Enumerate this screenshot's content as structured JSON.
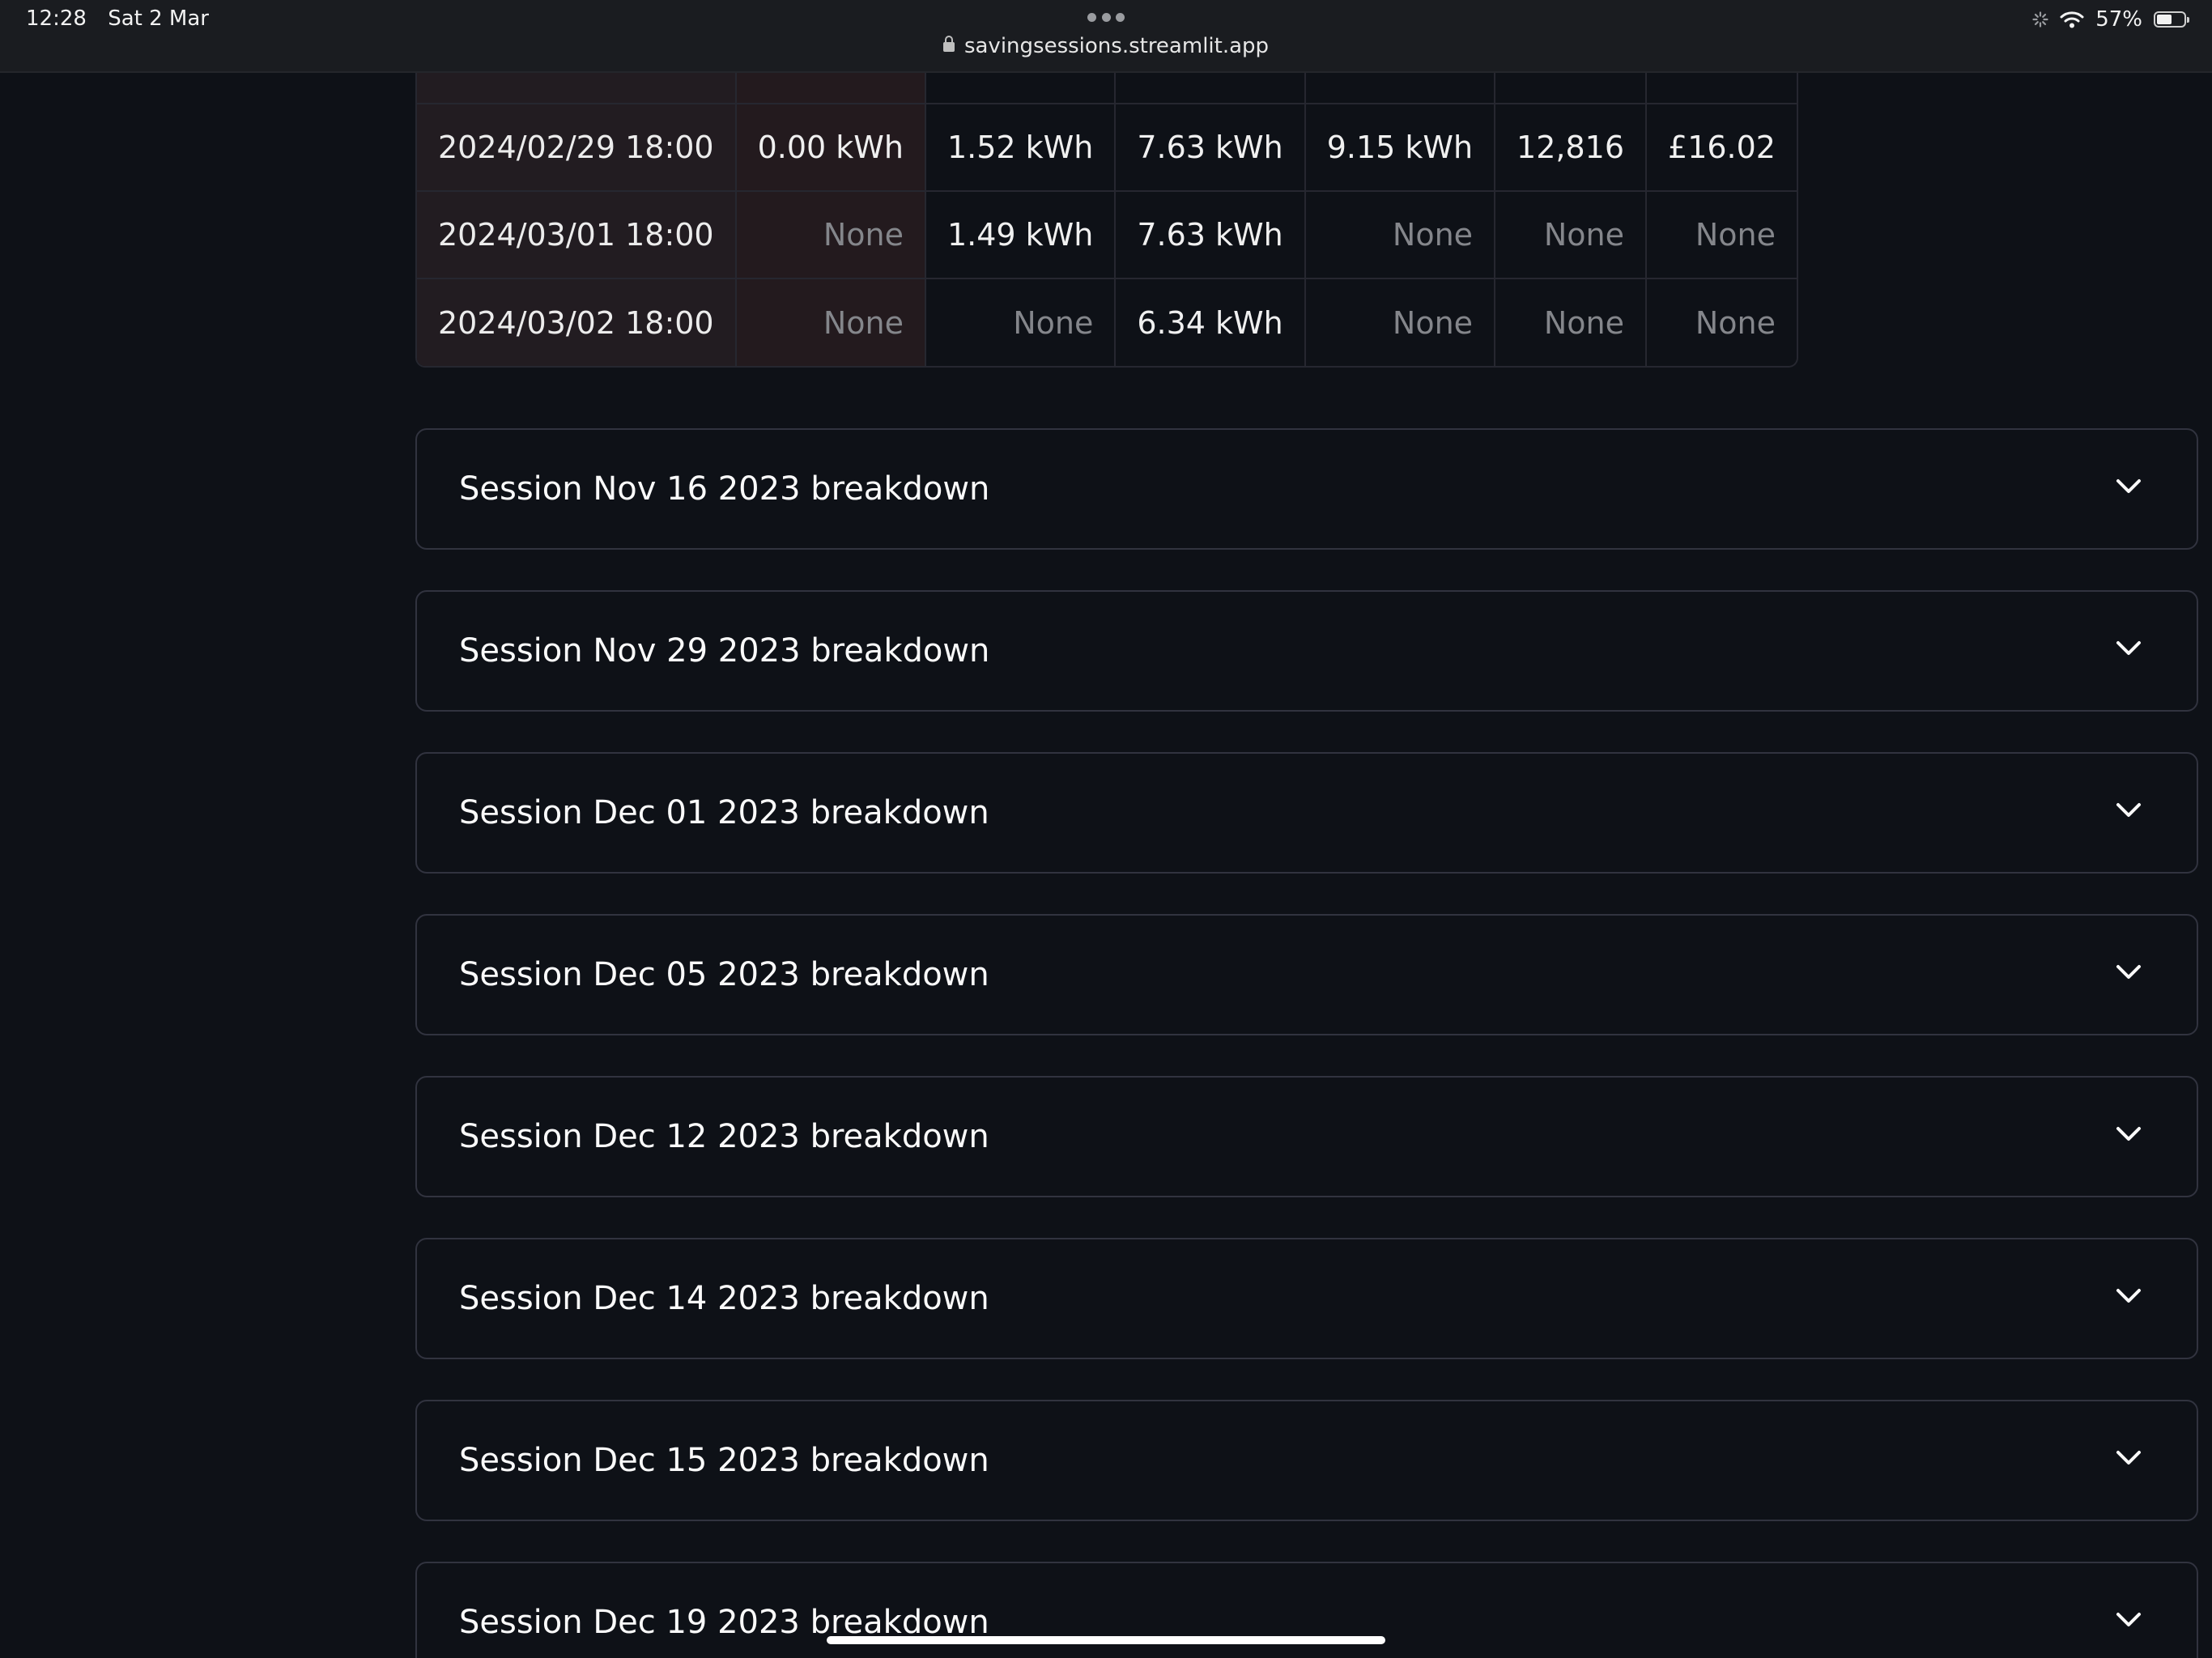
{
  "status_bar": {
    "time": "12:28",
    "date": "Sat 2 Mar",
    "url": "savingsessions.streamlit.app",
    "battery": "57%",
    "battery_level": 0.57
  },
  "table": {
    "rows": [
      {
        "index": "2024/02/29 18:00",
        "cells": [
          {
            "value": "0.00 kWh",
            "none": false
          },
          {
            "value": "1.52 kWh",
            "none": false
          },
          {
            "value": "7.63 kWh",
            "none": false
          },
          {
            "value": "9.15 kWh",
            "none": false
          },
          {
            "value": "12,816",
            "none": false
          },
          {
            "value": "£16.02",
            "none": false
          }
        ]
      },
      {
        "index": "2024/03/01 18:00",
        "cells": [
          {
            "value": "None",
            "none": true
          },
          {
            "value": "1.49 kWh",
            "none": false
          },
          {
            "value": "7.63 kWh",
            "none": false
          },
          {
            "value": "None",
            "none": true
          },
          {
            "value": "None",
            "none": true
          },
          {
            "value": "None",
            "none": true
          }
        ]
      },
      {
        "index": "2024/03/02 18:00",
        "cells": [
          {
            "value": "None",
            "none": true
          },
          {
            "value": "None",
            "none": true
          },
          {
            "value": "6.34 kWh",
            "none": false
          },
          {
            "value": "None",
            "none": true
          },
          {
            "value": "None",
            "none": true
          },
          {
            "value": "None",
            "none": true
          }
        ]
      }
    ]
  },
  "expanders": [
    {
      "label": "Session Nov 16 2023 breakdown"
    },
    {
      "label": "Session Nov 29 2023 breakdown"
    },
    {
      "label": "Session Dec 01 2023 breakdown"
    },
    {
      "label": "Session Dec 05 2023 breakdown"
    },
    {
      "label": "Session Dec 12 2023 breakdown"
    },
    {
      "label": "Session Dec 14 2023 breakdown"
    },
    {
      "label": "Session Dec 15 2023 breakdown"
    },
    {
      "label": "Session Dec 19 2023 breakdown"
    }
  ],
  "colors": {
    "background": "#0e1117",
    "highlight_cell": "#231a1e",
    "border": "#31333f"
  }
}
